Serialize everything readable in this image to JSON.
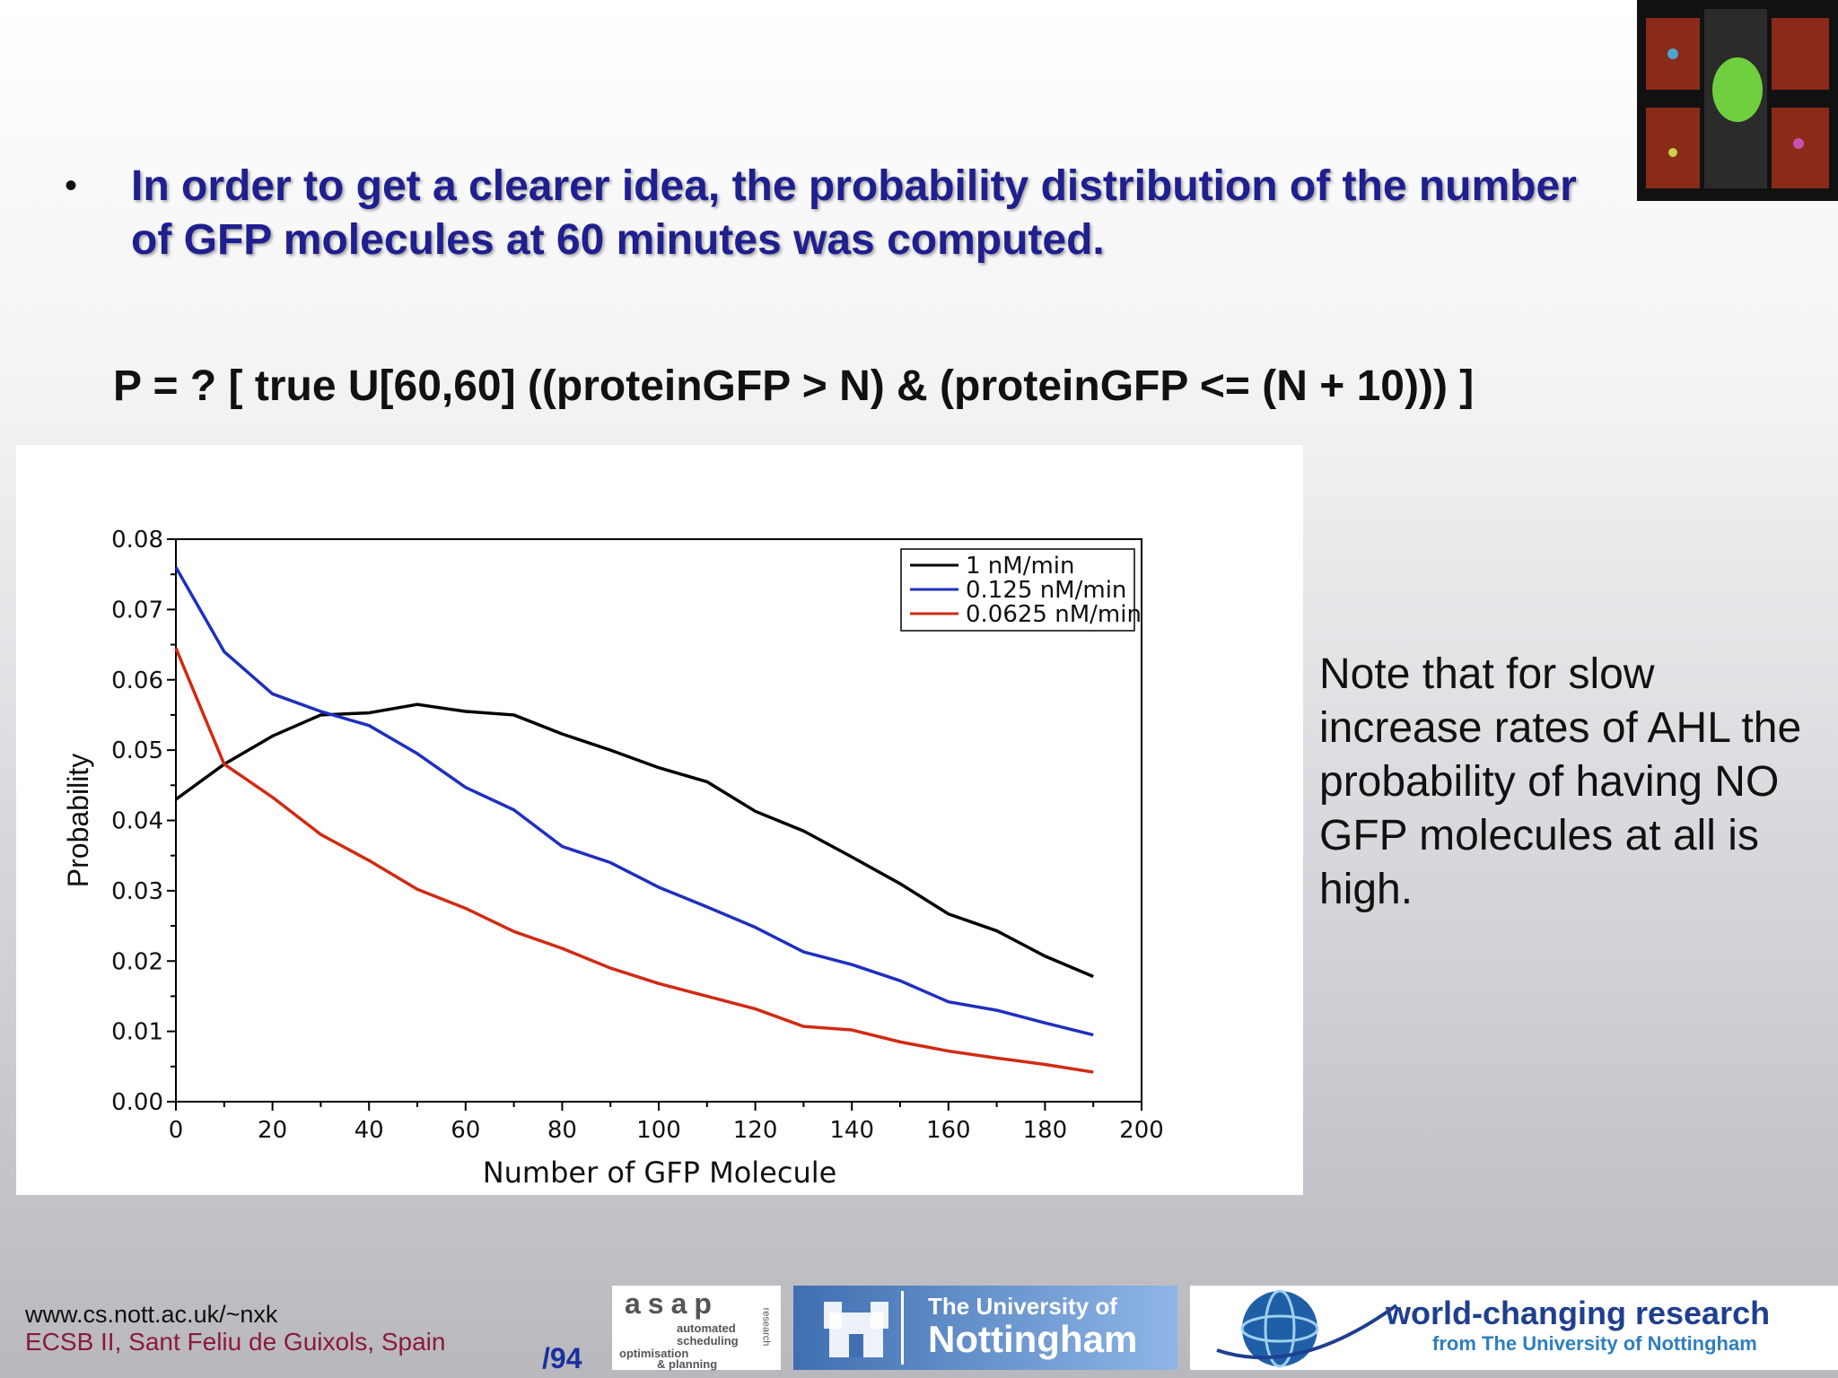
{
  "slide": {
    "bullet": "In order to get a clearer idea, the probability distribution of the number of GFP molecules at 60 minutes was computed.",
    "formula": "P = ? [ true U[60,60] ((proteinGFP > N) & (proteinGFP <= (N + 10))) ]",
    "note": "Note that for slow increase rates of AHL the probability of having NO GFP molecules at all is high.",
    "footer_url": "www.cs.nott.ac.uk/~nxk",
    "footer_conf": "ECSB II, Sant Feliu de Guixols, Spain",
    "page_label": "/94"
  },
  "logos": {
    "asap_title": "asap",
    "asap_l1": "automated",
    "asap_l2": "scheduling",
    "asap_l3": "optimisation",
    "asap_l4": "& planning",
    "asap_side": "research",
    "uon_small": "The University of",
    "uon_big": "Nottingham",
    "wcr_big": "world-changing research",
    "wcr_small": "from The University of Nottingham"
  },
  "chart_data": {
    "type": "line",
    "xlabel": "Number of GFP Molecule",
    "ylabel": "Probability",
    "xlim": [
      0,
      200
    ],
    "ylim": [
      0,
      0.08
    ],
    "x_ticks": [
      "0",
      "20",
      "40",
      "60",
      "80",
      "100",
      "120",
      "140",
      "160",
      "180",
      "200"
    ],
    "y_ticks": [
      "0.00",
      "0.01",
      "0.02",
      "0.03",
      "0.04",
      "0.05",
      "0.06",
      "0.07",
      "0.08"
    ],
    "legend_position": "top-right",
    "x": [
      0,
      10,
      20,
      30,
      40,
      50,
      60,
      70,
      80,
      90,
      100,
      110,
      120,
      130,
      140,
      150,
      160,
      170,
      180,
      190
    ],
    "series": [
      {
        "name": "1 nM/min",
        "color": "#000000",
        "values": [
          0.043,
          0.048,
          0.052,
          0.055,
          0.0553,
          0.0565,
          0.0555,
          0.055,
          0.0523,
          0.05,
          0.0475,
          0.0455,
          0.0413,
          0.0385,
          0.0348,
          0.031,
          0.0267,
          0.0243,
          0.0207,
          0.0178
        ]
      },
      {
        "name": "0.125 nM/min",
        "color": "#1f2fbf",
        "values": [
          0.076,
          0.064,
          0.058,
          0.0555,
          0.0535,
          0.0495,
          0.0447,
          0.0415,
          0.0363,
          0.034,
          0.0305,
          0.0277,
          0.0248,
          0.0213,
          0.0195,
          0.0172,
          0.0142,
          0.013,
          0.0112,
          0.0095
        ]
      },
      {
        "name": "0.0625 nM/min",
        "color": "#d12a12",
        "values": [
          0.0645,
          0.048,
          0.0433,
          0.038,
          0.0343,
          0.0302,
          0.0275,
          0.0242,
          0.0218,
          0.019,
          0.0168,
          0.015,
          0.0132,
          0.0107,
          0.0102,
          0.0085,
          0.0072,
          0.0062,
          0.0053,
          0.0042
        ]
      }
    ]
  },
  "colors": {
    "bullet_text": "#1f1f8f",
    "footer_conf": "#8b1a3a",
    "page_label": "#1a2f9f"
  }
}
